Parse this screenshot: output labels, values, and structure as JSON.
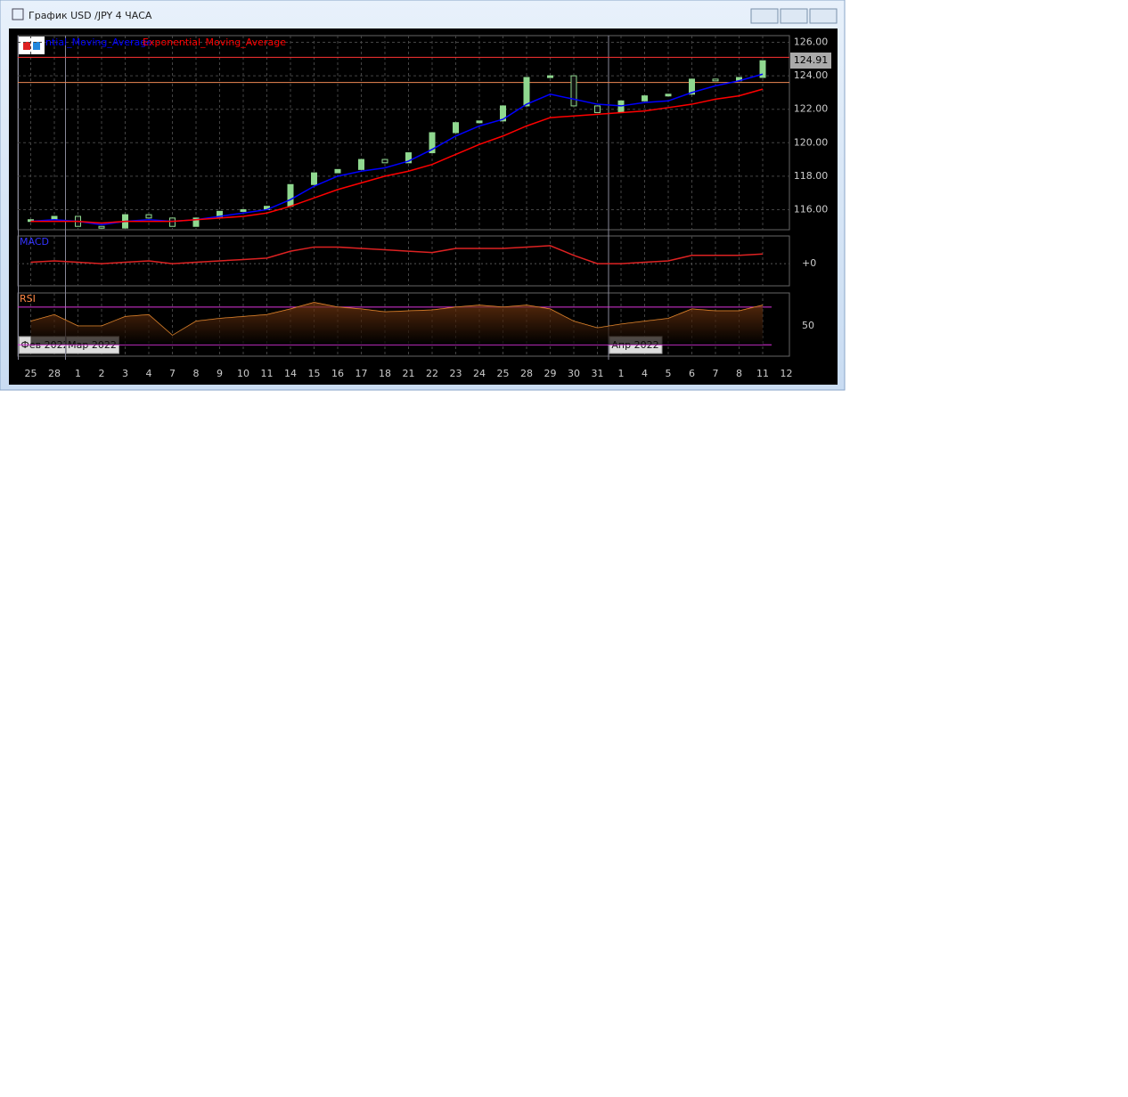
{
  "window": {
    "title": "График USD /JPY  4 ЧАСА"
  },
  "chart_data": {
    "type": "candle",
    "categories": [
      "25",
      "28",
      "1",
      "2",
      "3",
      "4",
      "7",
      "8",
      "9",
      "10",
      "11",
      "14",
      "15",
      "16",
      "17",
      "18",
      "21",
      "22",
      "23",
      "24",
      "25",
      "28",
      "29",
      "30",
      "31",
      "1",
      "4",
      "5",
      "6",
      "7",
      "8",
      "11",
      "12"
    ],
    "month_labels": [
      {
        "index": 0,
        "label": "Фев 2022"
      },
      {
        "index": 2,
        "label": "Мар 2022"
      },
      {
        "index": 25,
        "label": "Апр 2022"
      }
    ],
    "ylim": [
      114.8,
      126.4
    ],
    "yticks": [
      {
        "value": 116,
        "label": "116.00"
      },
      {
        "value": 118,
        "label": "118.00"
      },
      {
        "value": 120,
        "label": "120.00"
      },
      {
        "value": 122,
        "label": "122.00"
      },
      {
        "value": 124,
        "label": "124.00"
      },
      {
        "value": 126,
        "label": "126.00"
      }
    ],
    "current_price": {
      "value": 124.91,
      "label": "124.91"
    },
    "levels": [
      125.1,
      123.6
    ],
    "values": [
      115.4,
      115.6,
      115.0,
      114.9,
      115.7,
      115.5,
      115.0,
      115.5,
      115.9,
      116.0,
      116.2,
      117.5,
      118.2,
      118.4,
      119.0,
      118.8,
      119.4,
      120.6,
      121.2,
      121.3,
      122.2,
      123.9,
      124.0,
      122.2,
      121.8,
      122.5,
      122.8,
      122.9,
      123.8,
      123.7,
      123.9,
      124.9,
      null
    ],
    "series": [
      {
        "name": "ntial_Moving_Average",
        "color": "#0000ff",
        "values": [
          115.3,
          115.4,
          115.3,
          115.1,
          115.3,
          115.4,
          115.3,
          115.4,
          115.6,
          115.8,
          116.0,
          116.6,
          117.4,
          118.0,
          118.3,
          118.5,
          118.9,
          119.6,
          120.4,
          121.0,
          121.4,
          122.3,
          122.9,
          122.6,
          122.3,
          122.2,
          122.4,
          122.5,
          123.0,
          123.4,
          123.7,
          124.1,
          null
        ]
      },
      {
        "name": "Exponential_Moving_Average",
        "color": "#ff0000",
        "values": [
          115.3,
          115.3,
          115.3,
          115.2,
          115.3,
          115.3,
          115.3,
          115.4,
          115.5,
          115.6,
          115.8,
          116.2,
          116.7,
          117.2,
          117.6,
          118.0,
          118.3,
          118.7,
          119.3,
          119.9,
          120.4,
          121.0,
          121.5,
          121.6,
          121.7,
          121.8,
          121.9,
          122.1,
          122.3,
          122.6,
          122.8,
          123.2,
          null
        ]
      }
    ],
    "macd": {
      "title": "MACD",
      "ylim": [
        -0.8,
        1.0
      ],
      "yticks": [
        {
          "value": 0,
          "label": "+0"
        }
      ],
      "values": [
        0.05,
        0.1,
        0.05,
        0,
        0.05,
        0.1,
        0,
        0.05,
        0.1,
        0.15,
        0.2,
        0.45,
        0.6,
        0.6,
        0.55,
        0.5,
        0.45,
        0.4,
        0.55,
        0.55,
        0.55,
        0.6,
        0.65,
        0.3,
        0,
        0,
        0.05,
        0.1,
        0.3,
        0.3,
        0.3,
        0.35,
        null
      ]
    },
    "rsi": {
      "title": "RSI",
      "ylim": [
        18,
        85
      ],
      "yticks": [
        50
      ],
      "levels": [
        70,
        30
      ],
      "values": [
        55,
        62,
        50,
        50,
        60,
        62,
        40,
        55,
        58,
        60,
        62,
        68,
        75,
        70,
        68,
        65,
        66,
        67,
        70,
        72,
        70,
        72,
        68,
        55,
        48,
        52,
        55,
        58,
        68,
        66,
        66,
        72,
        null
      ]
    }
  }
}
